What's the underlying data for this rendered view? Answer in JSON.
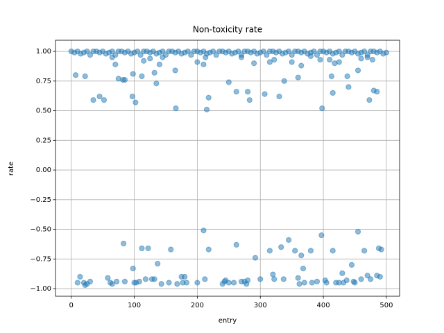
{
  "chart_data": {
    "type": "scatter",
    "title": "Non-toxicity rate",
    "x_label": "entry",
    "y_label": "rate",
    "color": "#1f77b4",
    "alpha": 0.5,
    "grid": true,
    "xlim": [
      -25,
      521
    ],
    "ylim": [
      -1.064,
      1.094
    ],
    "xticks": [
      0,
      100,
      200,
      300,
      400,
      500
    ],
    "yticks": [
      {
        "value": -1,
        "label": "−1.00"
      },
      {
        "value": -0.75,
        "label": "−0.75"
      },
      {
        "value": -0.5,
        "label": "−0.50"
      },
      {
        "value": -0.25,
        "label": "−0.25"
      },
      {
        "value": 0,
        "label": "0.00"
      },
      0.25,
      {
        "value": 0.5,
        "label": "0.50"
      },
      0.75,
      {
        "value": 1,
        "label": "1.00"
      }
    ],
    "x": [
      0,
      5,
      10,
      15,
      20,
      25,
      30,
      35,
      40,
      45,
      50,
      55,
      60,
      65,
      70,
      75,
      80,
      85,
      90,
      95,
      100,
      105,
      110,
      115,
      120,
      125,
      130,
      135,
      140,
      145,
      150,
      155,
      160,
      165,
      170,
      175,
      180,
      185,
      190,
      195,
      200,
      205,
      210,
      215,
      220,
      225,
      230,
      235,
      240,
      245,
      250,
      255,
      260,
      265,
      270,
      275,
      280,
      285,
      290,
      295,
      300,
      305,
      310,
      315,
      320,
      325,
      330,
      335,
      340,
      345,
      350,
      355,
      360,
      365,
      370,
      375,
      380,
      385,
      390,
      395,
      400,
      405,
      410,
      415,
      420,
      425,
      430,
      435,
      440,
      445,
      450,
      455,
      460,
      465,
      470,
      475,
      480,
      485,
      490,
      495,
      500,
      7,
      22,
      35,
      45,
      52,
      65,
      70,
      75,
      82,
      85,
      97,
      98,
      102,
      112,
      115,
      125,
      132,
      135,
      140,
      145,
      165,
      166,
      200,
      210,
      213,
      215,
      218,
      250,
      262,
      270,
      280,
      283,
      290,
      307,
      315,
      322,
      330,
      338,
      350,
      360,
      365,
      380,
      395,
      398,
      410,
      413,
      415,
      418,
      425,
      438,
      440,
      455,
      460,
      470,
      473,
      478,
      480,
      485,
      10,
      14,
      20,
      22,
      25,
      30,
      58,
      62,
      65,
      72,
      83,
      85,
      98,
      100,
      103,
      108,
      112,
      118,
      122,
      128,
      132,
      137,
      143,
      155,
      158,
      168,
      175,
      177,
      180,
      183,
      200,
      210,
      212,
      218,
      240,
      243,
      245,
      250,
      258,
      262,
      270,
      275,
      278,
      280,
      292,
      300,
      315,
      320,
      322,
      333,
      337,
      345,
      355,
      360,
      362,
      365,
      368,
      370,
      380,
      382,
      390,
      397,
      403,
      405,
      415,
      420,
      425,
      430,
      432,
      437,
      445,
      448,
      450,
      455,
      460,
      465,
      470,
      475,
      485,
      488,
      490,
      492
    ],
    "values": [
      1,
      0.99,
      1,
      0.98,
      0.99,
      1,
      0.97,
      1,
      1,
      0.99,
      1,
      0.98,
      0.99,
      1,
      0.97,
      1,
      1,
      0.99,
      1,
      0.98,
      0.99,
      1,
      0.97,
      1,
      1,
      0.99,
      1,
      0.98,
      0.99,
      1,
      0.97,
      1,
      1,
      0.99,
      1,
      0.98,
      0.99,
      1,
      0.97,
      1,
      1,
      0.99,
      1,
      0.98,
      0.99,
      1,
      0.97,
      1,
      1,
      0.99,
      1,
      0.98,
      0.99,
      1,
      0.97,
      1,
      1,
      0.99,
      1,
      0.98,
      0.99,
      1,
      0.97,
      1,
      1,
      0.99,
      1,
      0.98,
      0.99,
      1,
      0.97,
      1,
      1,
      0.99,
      1,
      0.98,
      0.99,
      1,
      0.97,
      1,
      1,
      0.99,
      1,
      0.98,
      0.99,
      1,
      0.97,
      1,
      1,
      0.99,
      1,
      0.98,
      0.99,
      1,
      0.97,
      1,
      1,
      0.99,
      1,
      0.98,
      0.99,
      0.8,
      0.79,
      0.59,
      0.62,
      0.59,
      0.95,
      0.89,
      0.77,
      0.76,
      0.76,
      0.62,
      0.81,
      0.57,
      0.79,
      0.92,
      0.94,
      0.82,
      0.73,
      0.89,
      0.95,
      0.84,
      0.52,
      0.91,
      0.89,
      0.95,
      0.51,
      0.61,
      0.74,
      0.66,
      0.95,
      0.66,
      0.59,
      0.9,
      0.64,
      0.91,
      0.93,
      0.62,
      0.75,
      0.91,
      0.78,
      0.88,
      0.96,
      0.93,
      0.52,
      0.93,
      0.79,
      0.65,
      0.9,
      0.91,
      0.79,
      0.7,
      0.84,
      0.94,
      0.95,
      0.59,
      0.93,
      0.67,
      0.66,
      -0.95,
      -0.9,
      -0.95,
      -0.97,
      -0.96,
      -0.94,
      -0.91,
      -0.95,
      -0.96,
      -0.94,
      -0.62,
      -0.94,
      -0.83,
      -0.95,
      -0.95,
      -0.94,
      -0.66,
      -0.92,
      -0.66,
      -0.92,
      -0.92,
      -0.79,
      -0.96,
      -0.95,
      -0.67,
      -0.96,
      -0.9,
      -0.95,
      -0.9,
      -0.95,
      -0.95,
      -0.51,
      -0.92,
      -0.67,
      -0.96,
      -0.94,
      -0.93,
      -0.95,
      -0.95,
      -0.63,
      -0.94,
      -0.94,
      -0.96,
      -0.93,
      -0.74,
      -0.92,
      -0.68,
      -0.88,
      -0.92,
      -0.65,
      -0.92,
      -0.59,
      -0.68,
      -0.91,
      -0.96,
      -0.72,
      -0.83,
      -0.95,
      -0.68,
      -0.95,
      -0.94,
      -0.55,
      -0.93,
      -0.95,
      -0.68,
      -0.95,
      -0.95,
      -0.87,
      -0.95,
      -0.93,
      -0.8,
      -0.94,
      -0.95,
      -0.52,
      -0.92,
      -0.68,
      -0.89,
      -0.92,
      -0.89,
      -0.66,
      -0.9,
      -0.67
    ]
  }
}
